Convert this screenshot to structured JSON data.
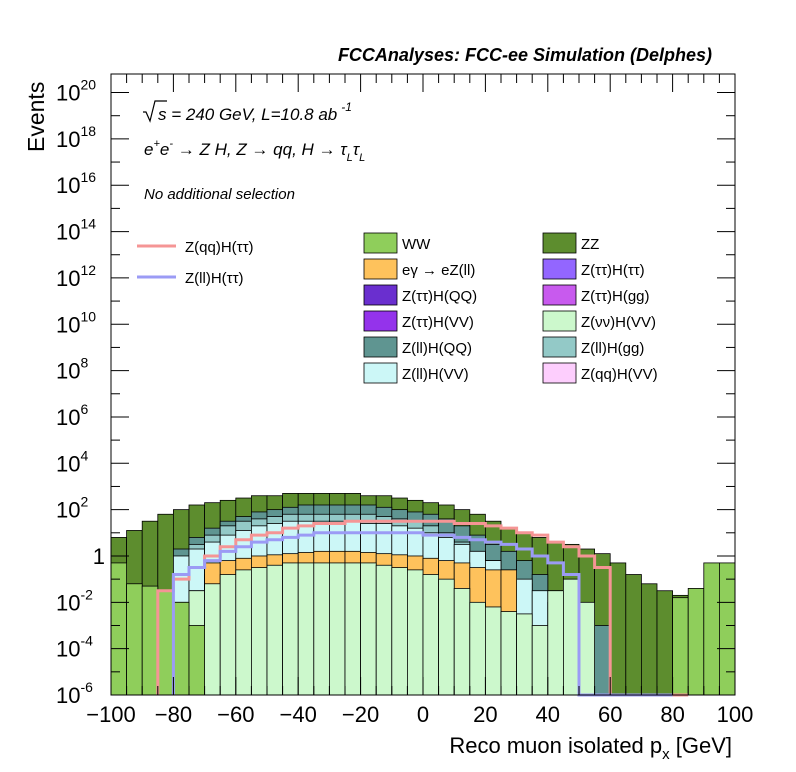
{
  "chart_data": {
    "type": "histogram",
    "header": "FCCAnalyses: FCC-ee Simulation (Delphes)",
    "annotations": {
      "sqrt_s": "s = 240 GeV, L=10.8 ab",
      "sqrt_s_exp": "-1",
      "process": "e",
      "process_sup1": "+",
      "process_mid": "e",
      "process_sup2": "-",
      "process_rest": " → Z H, Z  → qq, H  → τ",
      "process_sub": "L",
      "process_tail": "τ",
      "process_sub2": "L",
      "selection": "No additional selection"
    },
    "xlabel": "Reco muon isolated p",
    "xlabel_sub": "x",
    "xlabel_unit": " [GeV]",
    "ylabel": "Events",
    "xlim": [
      -100,
      100
    ],
    "ylim_log10": [
      -6,
      20.8
    ],
    "log_y": true,
    "x_ticks": [
      "−100",
      "−80",
      "−60",
      "−40",
      "−20",
      "0",
      "20",
      "40",
      "60",
      "80",
      "100"
    ],
    "y_ticks": [
      {
        "base": "10",
        "exp": "20",
        "v": 20
      },
      {
        "base": "10",
        "exp": "18",
        "v": 18
      },
      {
        "base": "10",
        "exp": "16",
        "v": 16
      },
      {
        "base": "10",
        "exp": "14",
        "v": 14
      },
      {
        "base": "10",
        "exp": "12",
        "v": 12
      },
      {
        "base": "10",
        "exp": "10",
        "v": 10
      },
      {
        "base": "10",
        "exp": "8",
        "v": 8
      },
      {
        "base": "10",
        "exp": "6",
        "v": 6
      },
      {
        "base": "10",
        "exp": "4",
        "v": 4
      },
      {
        "base": "10",
        "exp": "2",
        "v": 2
      },
      {
        "base": "1",
        "exp": "",
        "v": 0
      },
      {
        "base": "10",
        "exp": "-2",
        "v": -2
      },
      {
        "base": "10",
        "exp": "-4",
        "v": -4
      },
      {
        "base": "10",
        "exp": "-6",
        "v": -6
      }
    ],
    "bin_width": 5,
    "stack_levels_log10_top_to_bottom": [
      {
        "name": "ZZ",
        "color": "#5d8d2e",
        "levels": [
          0.8,
          1.1,
          1.5,
          1.8,
          2.0,
          2.2,
          2.3,
          2.4,
          2.5,
          2.6,
          2.6,
          2.7,
          2.7,
          2.7,
          2.7,
          2.7,
          2.6,
          2.6,
          2.5,
          2.4,
          2.3,
          2.2,
          2.0,
          1.8,
          1.5,
          1.2,
          1.0,
          0.8,
          0.6,
          0.5,
          0.3,
          0.1,
          -0.3,
          -0.8,
          -1.2,
          -1.5,
          -1.7,
          -1.8,
          -2.0,
          -2.1
        ]
      },
      {
        "name": "Z(ll)H(QQ)",
        "color": "#5f9591",
        "levels": [
          -6,
          -6,
          -6,
          -6,
          0.3,
          0.8,
          1.2,
          1.5,
          1.7,
          1.9,
          2.0,
          2.1,
          2.2,
          2.2,
          2.2,
          2.2,
          2.2,
          2.1,
          2.0,
          1.9,
          1.8,
          1.6,
          1.3,
          0.9,
          0.5,
          0.2,
          -0.2,
          -0.8,
          -1.5,
          -2.0,
          -2.5,
          -3,
          -6,
          -6,
          -6,
          -6,
          -6,
          -6,
          -6,
          -6
        ]
      },
      {
        "name": "Z(ll)H(gg)",
        "color": "#93c9c7",
        "levels": [
          -6,
          -6,
          -6,
          -6,
          -6,
          0.5,
          0.9,
          1.3,
          1.5,
          1.6,
          1.7,
          1.8,
          1.8,
          1.8,
          1.8,
          1.8,
          1.8,
          1.7,
          1.6,
          1.5,
          1.3,
          1.0,
          0.6,
          0.2,
          -0.2,
          -0.6,
          -1.2,
          -1.8,
          -2.2,
          -2.8,
          -6,
          -6,
          -6,
          -6,
          -6,
          -6,
          -6,
          -6,
          -6,
          -6
        ]
      },
      {
        "name": "Z(ll)H(VV)",
        "color": "#ccf7f7",
        "levels": [
          -6,
          -6,
          -6,
          -6,
          0.0,
          0.3,
          0.6,
          0.9,
          1.1,
          1.3,
          1.4,
          1.5,
          1.5,
          1.5,
          1.5,
          1.5,
          1.4,
          1.4,
          1.3,
          1.2,
          1.0,
          0.8,
          0.5,
          0.2,
          -0.2,
          -0.6,
          -1.0,
          -1.5,
          -2.0,
          -2.5,
          -3,
          -6,
          -6,
          -6,
          -6,
          -6,
          -6,
          -6,
          -6,
          -6
        ]
      }
    ],
    "stacked_components": [
      {
        "name": "Z(ττ)H(VV)",
        "color": "#9433eb",
        "levels": [
          -6,
          -6,
          -6,
          -6,
          -2.0,
          -1.5,
          -0.8,
          -0.4,
          -0.2,
          -0.1,
          0.0,
          0.05,
          0.1,
          0.1,
          0.1,
          0.1,
          0.05,
          0.0,
          -0.1,
          -0.2,
          -0.4,
          -0.8,
          -1.5,
          -2.0,
          -6,
          -6,
          -6,
          -6,
          -6,
          -6,
          -6,
          -6,
          -6,
          -6,
          -6,
          -6,
          -6,
          -6,
          -6,
          -6
        ]
      },
      {
        "name": "Z(ττ)H(gg)",
        "color": "#c85aee",
        "levels": [
          -6,
          -6,
          -6,
          -6,
          -6,
          -6,
          -6,
          -2.4,
          -2.4,
          -2.0,
          -2.0,
          -1.8,
          -1.6,
          -1.5,
          -1.4,
          -1.4,
          -1.3,
          -1.3,
          -1.5,
          -1.6,
          -1.9,
          -2.0,
          -6,
          -6,
          -6,
          -6,
          -6,
          -6,
          -6,
          -6,
          -6,
          -6,
          -6,
          -6,
          -6,
          -6,
          -6,
          -6,
          -6,
          -6
        ]
      },
      {
        "name": "eγ → eZ(ll)",
        "color": "#fec25c",
        "levels": [
          -6,
          -6,
          -6,
          -6,
          -6,
          -6,
          -0.3,
          -0.2,
          -0.1,
          0.0,
          0.05,
          0.1,
          0.15,
          0.2,
          0.2,
          0.2,
          0.15,
          0.1,
          0.05,
          0.0,
          -0.1,
          -0.2,
          -0.3,
          -0.5,
          -0.6,
          -0.6,
          -6,
          -6,
          -6,
          -6,
          -6,
          -6,
          -6,
          -6,
          -6,
          -6,
          -6,
          -6,
          -6,
          -6
        ]
      },
      {
        "name": "Z(νν)H(VV)",
        "color": "#ccf8cc",
        "levels": [
          -1.0,
          -2.0,
          -6,
          -6,
          -2.2,
          -1.5,
          -1.2,
          -0.8,
          -0.6,
          -0.5,
          -0.4,
          -0.3,
          -0.3,
          -0.3,
          -0.3,
          -0.3,
          -0.3,
          -0.4,
          -0.5,
          -0.6,
          -0.8,
          -1.0,
          -1.4,
          -2.0,
          -2.2,
          -2.4,
          -2.5,
          -3.0,
          -1.5,
          -1.0,
          -2.0,
          -6,
          -6,
          -6,
          -6,
          -6,
          -6,
          -6,
          -6,
          -6
        ]
      },
      {
        "name": "WW",
        "color": "#8fce5b",
        "levels": [
          -0.3,
          -1.2,
          -1.3,
          -1.5,
          -2.0,
          -3,
          -6,
          -6,
          -6,
          -6,
          -6,
          -6,
          -6,
          -6,
          -6,
          -6,
          -6,
          -6,
          -6,
          -6,
          -6,
          -6,
          -6,
          -6,
          -6,
          -6,
          -6,
          -6,
          -6,
          -6,
          -6,
          -6,
          -6,
          -6,
          -6,
          -6,
          -1.8,
          -1.4,
          -0.3,
          -0.3
        ]
      }
    ],
    "series_lines": [
      {
        "name": "Z(qq)H(ττ)",
        "color": "#f59595",
        "x_start": -85,
        "x_end": 80,
        "levels": [
          -6,
          -6,
          -6,
          -1.5,
          -1.0,
          -0.5,
          0.0,
          0.4,
          0.7,
          0.9,
          1.0,
          1.2,
          1.3,
          1.4,
          1.4,
          1.5,
          1.5,
          1.5,
          1.5,
          1.5,
          1.5,
          1.5,
          1.4,
          1.4,
          1.3,
          1.2,
          1.0,
          0.9,
          0.6,
          0.4,
          0.0,
          -0.5,
          -6,
          -6,
          -6,
          -6,
          -6,
          -6,
          -6,
          -6
        ]
      },
      {
        "name": "Z(ll)H(ττ)",
        "color": "#9b9bf5",
        "x_start": -80,
        "x_end": 75,
        "levels": [
          -6,
          -6,
          -6,
          -6,
          -0.8,
          -0.5,
          -0.2,
          0.2,
          0.4,
          0.6,
          0.7,
          0.8,
          0.9,
          1.0,
          1.0,
          1.0,
          1.0,
          1.0,
          1.0,
          1.0,
          0.9,
          0.9,
          0.8,
          0.7,
          0.6,
          0.5,
          0.3,
          0.0,
          -0.3,
          -0.8,
          -6,
          -6,
          -6,
          -6,
          -6,
          -6,
          -6,
          -6,
          -6,
          -6
        ]
      }
    ],
    "legend_lines": [
      "Z(qq)H(ττ)",
      "Z(ll)H(ττ)"
    ],
    "legend_boxes": [
      {
        "name": "WW",
        "color": "#8fce5b"
      },
      {
        "name": "ZZ",
        "color": "#5d8d2e"
      },
      {
        "name": "eγ → eZ(ll)",
        "color": "#fec25c"
      },
      {
        "name": "Z(ττ)H(ττ)",
        "color": "#9366ff"
      },
      {
        "name": "Z(ττ)H(QQ)",
        "color": "#6a2fcf"
      },
      {
        "name": "Z(ττ)H(gg)",
        "color": "#c85aee"
      },
      {
        "name": "Z(ττ)H(VV)",
        "color": "#9433eb"
      },
      {
        "name": "Z(νν)H(VV)",
        "color": "#ccf8cc"
      },
      {
        "name": "Z(ll)H(QQ)",
        "color": "#5f9591"
      },
      {
        "name": "Z(ll)H(gg)",
        "color": "#93c9c7"
      },
      {
        "name": "Z(ll)H(VV)",
        "color": "#ccf7f7"
      },
      {
        "name": "Z(qq)H(VV)",
        "color": "#fdcefd"
      }
    ]
  }
}
